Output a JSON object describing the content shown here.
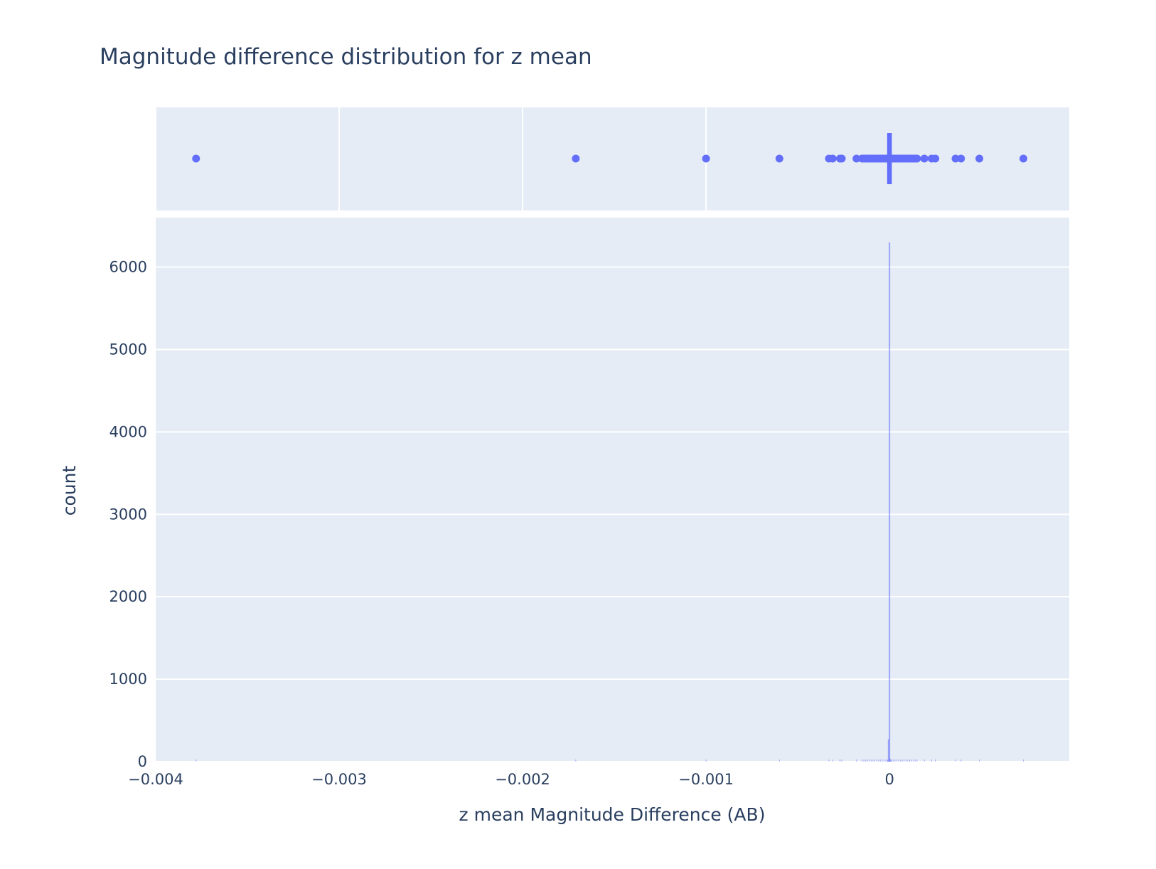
{
  "chart_data": {
    "type": "histogram",
    "title": "Magnitude difference distribution for z mean",
    "xlabel": "z mean Magnitude Difference (AB)",
    "ylabel": "count",
    "xlim": [
      -0.004,
      0.00098
    ],
    "ylim": [
      0,
      6600
    ],
    "x_ticks": [
      -0.004,
      -0.003,
      -0.002,
      -0.001,
      0
    ],
    "x_tick_labels": [
      "−0.004",
      "−0.003",
      "−0.002",
      "−0.001",
      "0"
    ],
    "y_ticks": [
      0,
      1000,
      2000,
      3000,
      4000,
      5000,
      6000
    ],
    "y_tick_labels": [
      "0",
      "1000",
      "2000",
      "3000",
      "4000",
      "5000",
      "6000"
    ],
    "grid": true,
    "color": "#636efa",
    "histogram": {
      "bins": [
        {
          "x": 0,
          "count": 6300
        },
        {
          "x": -5e-06,
          "count": 270
        },
        {
          "x": 5e-06,
          "count": 30
        },
        {
          "x": -1e-05,
          "count": 12
        },
        {
          "x": 1e-05,
          "count": 8
        }
      ]
    },
    "marginal_strip": {
      "points": [
        -0.00378,
        -0.00171,
        -0.001,
        -0.0006,
        -0.00033,
        -0.00031,
        -0.00027,
        -0.00026,
        -0.00018,
        -0.00015,
        -0.00014,
        -0.00013,
        -0.00012,
        -0.00011,
        -0.0001,
        -9e-05,
        -8e-05,
        -7e-05,
        -6e-05,
        -5e-05,
        -4e-05,
        -3e-05,
        -2e-05,
        -1e-05,
        0,
        1e-05,
        2e-05,
        3e-05,
        4e-05,
        5e-05,
        6e-05,
        7e-05,
        8e-05,
        9e-05,
        0.0001,
        0.00011,
        0.00012,
        0.00013,
        0.00014,
        0.00015,
        0.00019,
        0.00023,
        0.00025,
        0.00036,
        0.00039,
        0.00049,
        0.00073
      ],
      "dense_range": [
        -5e-06,
        5e-06
      ]
    }
  }
}
